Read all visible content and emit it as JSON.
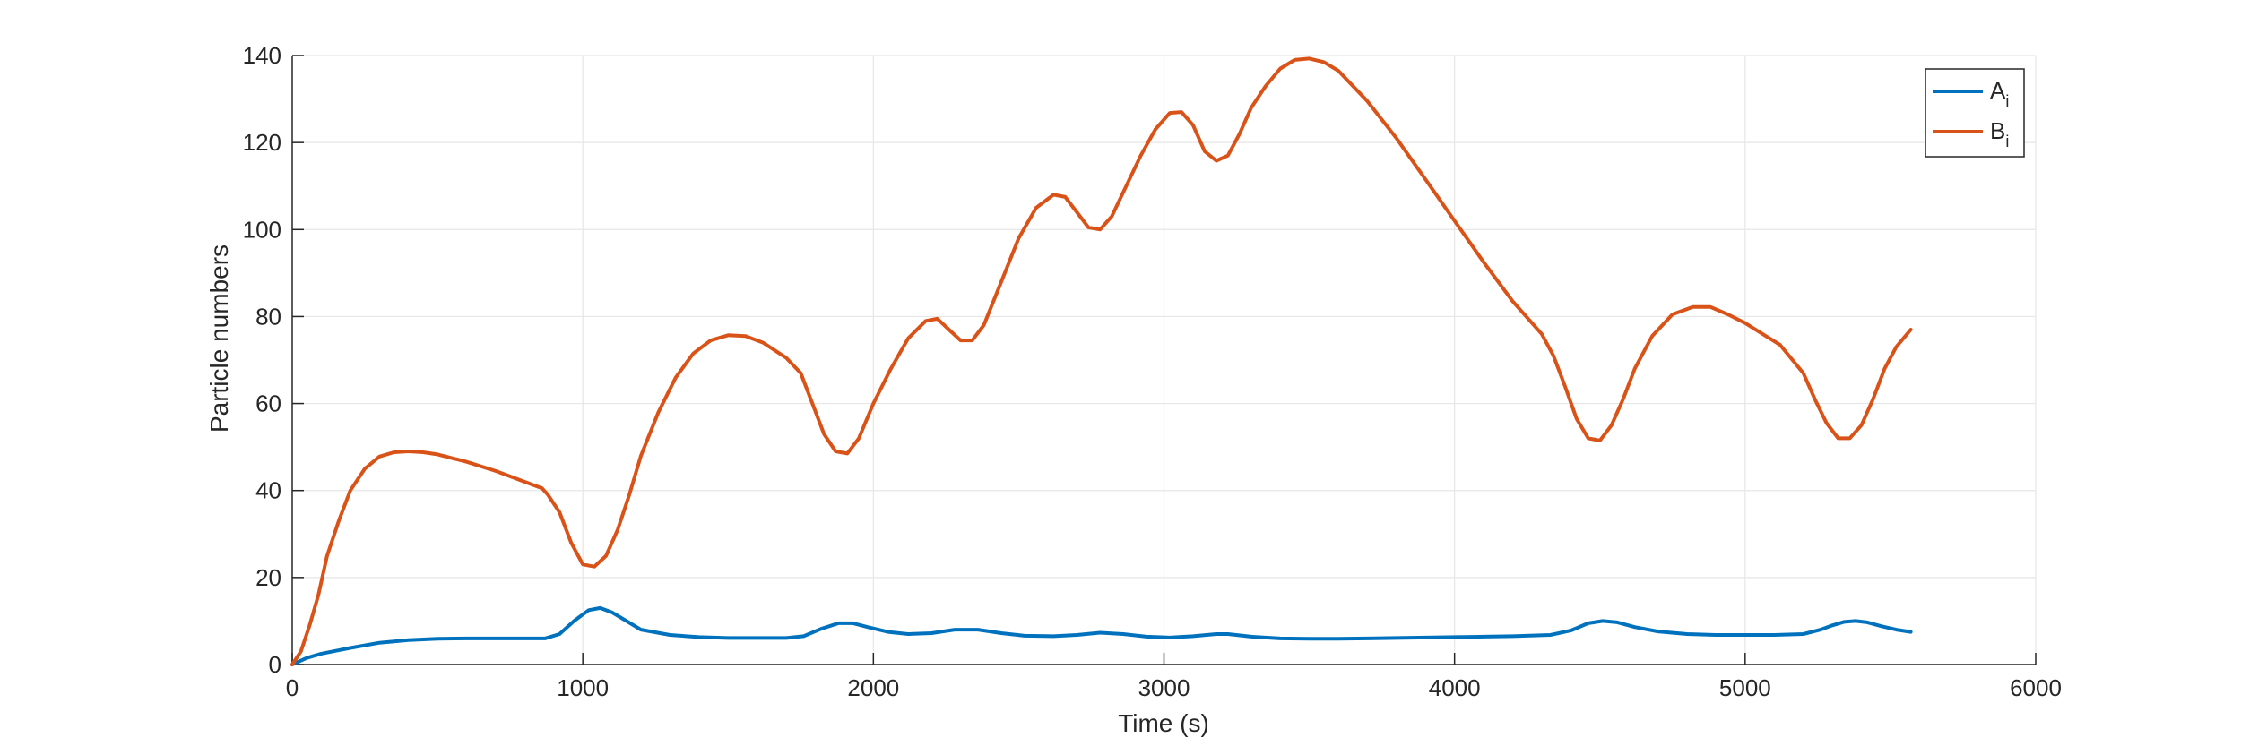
{
  "chart_data": {
    "type": "line",
    "title": "",
    "xlabel": "Time (s)",
    "ylabel": "Particle numbers",
    "xlim": [
      0,
      6000
    ],
    "ylim": [
      0,
      140
    ],
    "xticks": [
      0,
      1000,
      2000,
      3000,
      4000,
      5000,
      6000
    ],
    "yticks": [
      0,
      20,
      40,
      60,
      80,
      100,
      120,
      140
    ],
    "grid": true,
    "legend_position": "top-right",
    "series": [
      {
        "name": "A",
        "subscript": "i",
        "color": "#0072BD",
        "x": [
          0,
          50,
          100,
          200,
          300,
          400,
          500,
          600,
          700,
          800,
          870,
          920,
          970,
          1020,
          1060,
          1100,
          1150,
          1200,
          1300,
          1400,
          1500,
          1600,
          1700,
          1760,
          1820,
          1880,
          1930,
          1980,
          2050,
          2120,
          2200,
          2280,
          2360,
          2440,
          2520,
          2620,
          2700,
          2780,
          2860,
          2940,
          3020,
          3100,
          3180,
          3220,
          3300,
          3400,
          3500,
          3600,
          3700,
          3800,
          3900,
          4000,
          4100,
          4200,
          4330,
          4400,
          4460,
          4510,
          4560,
          4620,
          4700,
          4800,
          4900,
          5000,
          5100,
          5200,
          5260,
          5300,
          5340,
          5380,
          5420,
          5470,
          5520,
          5570
        ],
        "y": [
          0,
          1.5,
          2.5,
          3.8,
          5,
          5.6,
          5.9,
          6,
          6,
          6,
          6,
          7,
          10,
          12.5,
          13,
          12,
          10,
          8,
          6.8,
          6.3,
          6.1,
          6.1,
          6.1,
          6.5,
          8.2,
          9.5,
          9.5,
          8.6,
          7.5,
          7,
          7.2,
          8,
          8,
          7.2,
          6.6,
          6.5,
          6.8,
          7.3,
          7,
          6.4,
          6.2,
          6.5,
          7,
          7,
          6.4,
          6,
          5.9,
          5.9,
          6,
          6.1,
          6.2,
          6.3,
          6.4,
          6.5,
          6.8,
          7.8,
          9.5,
          10,
          9.7,
          8.6,
          7.6,
          7,
          6.8,
          6.8,
          6.8,
          7,
          8,
          9,
          9.8,
          10,
          9.7,
          8.8,
          8,
          7.5
        ]
      },
      {
        "name": "B",
        "subscript": "i",
        "color": "#D95319",
        "x": [
          0,
          30,
          60,
          90,
          120,
          160,
          200,
          250,
          300,
          350,
          400,
          450,
          500,
          600,
          700,
          800,
          860,
          880,
          920,
          960,
          1000,
          1040,
          1080,
          1120,
          1160,
          1200,
          1260,
          1320,
          1380,
          1440,
          1500,
          1560,
          1620,
          1700,
          1750,
          1790,
          1830,
          1870,
          1910,
          1950,
          2000,
          2060,
          2120,
          2180,
          2220,
          2260,
          2300,
          2340,
          2380,
          2440,
          2500,
          2560,
          2620,
          2660,
          2700,
          2740,
          2780,
          2820,
          2870,
          2920,
          2970,
          3020,
          3060,
          3100,
          3140,
          3180,
          3220,
          3260,
          3300,
          3350,
          3400,
          3450,
          3500,
          3550,
          3600,
          3700,
          3800,
          3900,
          4000,
          4100,
          4200,
          4300,
          4340,
          4380,
          4420,
          4460,
          4500,
          4540,
          4580,
          4620,
          4680,
          4750,
          4820,
          4880,
          4940,
          5000,
          5060,
          5120,
          5200,
          5240,
          5280,
          5320,
          5360,
          5400,
          5440,
          5480,
          5520,
          5570
        ],
        "y": [
          0,
          3,
          9,
          16,
          25,
          33,
          40,
          45,
          47.8,
          48.8,
          49,
          48.8,
          48.3,
          46.6,
          44.5,
          42,
          40.5,
          39,
          35,
          28,
          23,
          22.5,
          25,
          31,
          39,
          48,
          58,
          66,
          71.5,
          74.5,
          75.7,
          75.5,
          74,
          70.5,
          67,
          60,
          53,
          49,
          48.5,
          52,
          60,
          68,
          75,
          79,
          79.5,
          77,
          74.5,
          74.5,
          78,
          88,
          98,
          105,
          108,
          107.5,
          104,
          100.5,
          100,
          103,
          110,
          117,
          123,
          126.8,
          127,
          124,
          118,
          115.8,
          117,
          122,
          128,
          133,
          137,
          139,
          139.3,
          138.5,
          136.5,
          129.5,
          121,
          111.5,
          102,
          92.5,
          83.5,
          76,
          71,
          64,
          56.5,
          52,
          51.5,
          55,
          61,
          68,
          75.5,
          80.5,
          82.2,
          82.2,
          80.5,
          78.5,
          76,
          73.5,
          67,
          61,
          55.5,
          52,
          52,
          55,
          61,
          68,
          73,
          77
        ]
      }
    ]
  }
}
